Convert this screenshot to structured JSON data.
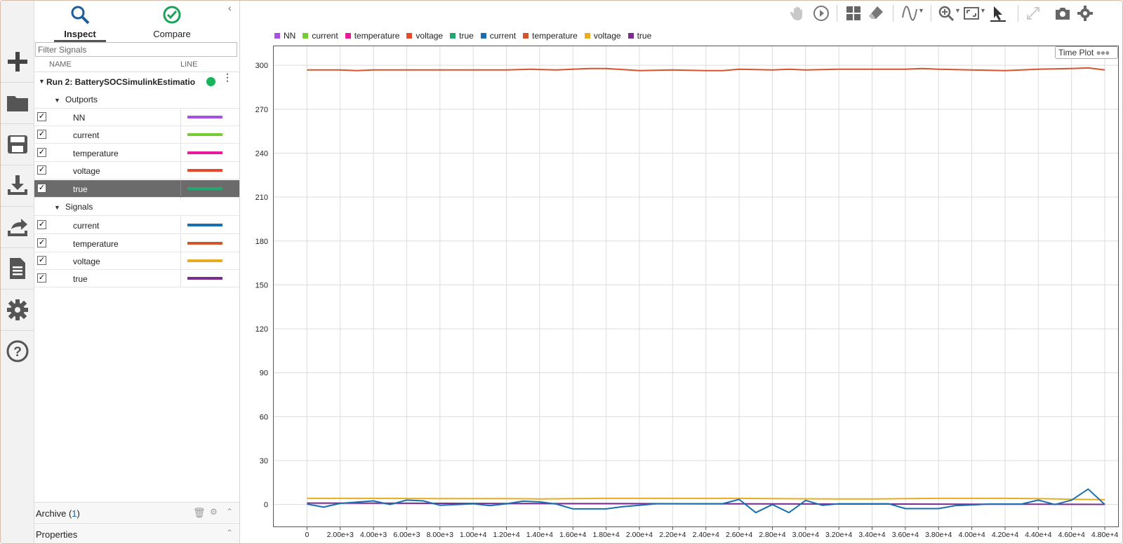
{
  "tabs": [
    {
      "label": "Inspect"
    },
    {
      "label": "Compare"
    }
  ],
  "filter": {
    "placeholder": "Filter Signals"
  },
  "columns": {
    "name": "NAME",
    "line": "LINE"
  },
  "run": {
    "label": "Run 2: BatterySOCSimulinkEstimatio"
  },
  "groups": [
    {
      "label": "Outports",
      "items": [
        {
          "label": "NN",
          "color": "#a64fe0"
        },
        {
          "label": "current",
          "color": "#77cc33"
        },
        {
          "label": "temperature",
          "color": "#e8199a"
        },
        {
          "label": "voltage",
          "color": "#e8492a"
        },
        {
          "label": "true",
          "color": "#25a56f",
          "selected": true
        }
      ]
    },
    {
      "label": "Signals",
      "items": [
        {
          "label": "current",
          "color": "#1a6fb0"
        },
        {
          "label": "temperature",
          "color": "#d4552a"
        },
        {
          "label": "voltage",
          "color": "#e8ac21"
        },
        {
          "label": "true",
          "color": "#7b2d8e"
        }
      ]
    }
  ],
  "archive": {
    "label": "Archive (",
    "count": "1",
    "close": ")"
  },
  "properties": {
    "label": "Properties"
  },
  "plot": {
    "badge": "Time Plot"
  },
  "rail_icons": [
    "add-icon",
    "folder-icon",
    "save-icon",
    "download-icon",
    "share-icon",
    "report-icon",
    "settings-icon",
    "help-icon"
  ],
  "toolbar_icons": [
    "pan-icon",
    "play-icon",
    "layout-icon",
    "erase-icon",
    "signal-icon",
    "zoom-icon",
    "fit-icon",
    "cursor-icon",
    "expand-icon",
    "snapshot-icon",
    "gear-icon"
  ],
  "chart_data": {
    "type": "line",
    "legend": [
      {
        "name": "NN",
        "color": "#a64fe0"
      },
      {
        "name": "current",
        "color": "#77cc33"
      },
      {
        "name": "temperature",
        "color": "#e8199a"
      },
      {
        "name": "voltage",
        "color": "#e8492a"
      },
      {
        "name": "true",
        "color": "#25a56f"
      },
      {
        "name": "current",
        "color": "#1a6fb0"
      },
      {
        "name": "temperature",
        "color": "#d4552a"
      },
      {
        "name": "voltage",
        "color": "#e8ac21"
      },
      {
        "name": "true",
        "color": "#7b2d8e"
      }
    ],
    "xlim": [
      -2000,
      48800
    ],
    "ylim": [
      -15,
      313
    ],
    "xticks": [
      0,
      2000,
      4000,
      6000,
      8000,
      10000,
      12000,
      14000,
      16000,
      18000,
      20000,
      22000,
      24000,
      26000,
      28000,
      30000,
      32000,
      34000,
      36000,
      38000,
      40000,
      42000,
      44000,
      46000,
      48000
    ],
    "xtick_labels": [
      "0",
      "2.00e+3",
      "4.00e+3",
      "6.00e+3",
      "8.00e+3",
      "1.00e+4",
      "1.20e+4",
      "1.40e+4",
      "1.60e+4",
      "1.80e+4",
      "2.00e+4",
      "2.20e+4",
      "2.40e+4",
      "2.60e+4",
      "2.80e+4",
      "3.00e+4",
      "3.20e+4",
      "3.40e+4",
      "3.60e+4",
      "3.80e+4",
      "4.00e+4",
      "4.20e+4",
      "4.40e+4",
      "4.60e+4",
      "4.80e+4"
    ],
    "yticks": [
      0,
      30,
      60,
      90,
      120,
      150,
      180,
      210,
      240,
      270,
      300
    ],
    "yticks_labels": [
      "0",
      "30",
      "60",
      "90",
      "120",
      "150",
      "180",
      "210",
      "240",
      "270",
      "300"
    ],
    "series": [
      {
        "name": "temperature",
        "color": "#d4552a",
        "x": [
          0,
          2000,
          3000,
          4000,
          6000,
          8000,
          10000,
          12000,
          13500,
          15000,
          17000,
          18000,
          20000,
          22000,
          24000,
          25000,
          26000,
          28000,
          29000,
          30000,
          32000,
          34000,
          36000,
          37000,
          38000,
          40000,
          42000,
          44000,
          46000,
          47000,
          48000
        ],
        "y": [
          296.8,
          296.8,
          296.4,
          296.8,
          296.8,
          296.8,
          296.8,
          296.8,
          297.3,
          296.8,
          297.8,
          297.8,
          296.4,
          296.8,
          296.4,
          296.4,
          297.3,
          296.8,
          297.3,
          296.8,
          297.3,
          297.3,
          297.3,
          297.8,
          297.3,
          296.8,
          296.4,
          297.3,
          297.8,
          298.2,
          296.8
        ]
      },
      {
        "name": "voltage",
        "color": "#e8ac21",
        "x": [
          0,
          4000,
          8000,
          12000,
          14000,
          16000,
          18000,
          20000,
          24000,
          26000,
          28000,
          32000,
          34000,
          36000,
          38000,
          42000,
          44000,
          46000,
          48000
        ],
        "y": [
          4.2,
          4.2,
          4.0,
          4.0,
          3.8,
          4.0,
          4.2,
          4.2,
          4.2,
          4.2,
          4.0,
          3.8,
          3.8,
          4.0,
          4.2,
          4.2,
          4.0,
          3.6,
          3.3
        ]
      },
      {
        "name": "true",
        "color": "#7b2d8e",
        "x": [
          0,
          4000,
          8000,
          12000,
          16000,
          20000,
          24000,
          28000,
          32000,
          36000,
          40000,
          44000,
          48000
        ],
        "y": [
          1.0,
          0.9,
          0.8,
          0.7,
          0.6,
          0.6,
          0.5,
          0.4,
          0.3,
          0.3,
          0.2,
          0.2,
          0.1
        ]
      },
      {
        "name": "current",
        "color": "#1a6fb0",
        "x": [
          0,
          1000,
          2000,
          4000,
          5000,
          6000,
          7000,
          8000,
          9000,
          10000,
          11000,
          12000,
          13000,
          14000,
          15000,
          16000,
          17000,
          18000,
          19000,
          20000,
          21000,
          22000,
          23000,
          24000,
          25000,
          26000,
          27000,
          28000,
          29000,
          30000,
          31000,
          32000,
          33000,
          34000,
          35000,
          36000,
          37000,
          38000,
          39000,
          40000,
          41000,
          42000,
          43000,
          44000,
          45000,
          46000,
          47000,
          48000
        ],
        "y": [
          0.3,
          -1.8,
          0.8,
          2.5,
          0,
          3,
          2.5,
          -0.5,
          0,
          0.5,
          -0.8,
          0.5,
          2.3,
          1.8,
          0.3,
          -3,
          -3,
          -3,
          -1.5,
          -0.5,
          0.5,
          0.5,
          0.5,
          0.5,
          0.5,
          3.5,
          -5.5,
          0,
          -5.5,
          2.8,
          -0.5,
          0.5,
          0.5,
          0.5,
          0.5,
          -2.8,
          -2.8,
          -2.8,
          -0.8,
          -0.3,
          0.3,
          0.3,
          0.3,
          3,
          0,
          3,
          10.5,
          0
        ]
      }
    ]
  }
}
